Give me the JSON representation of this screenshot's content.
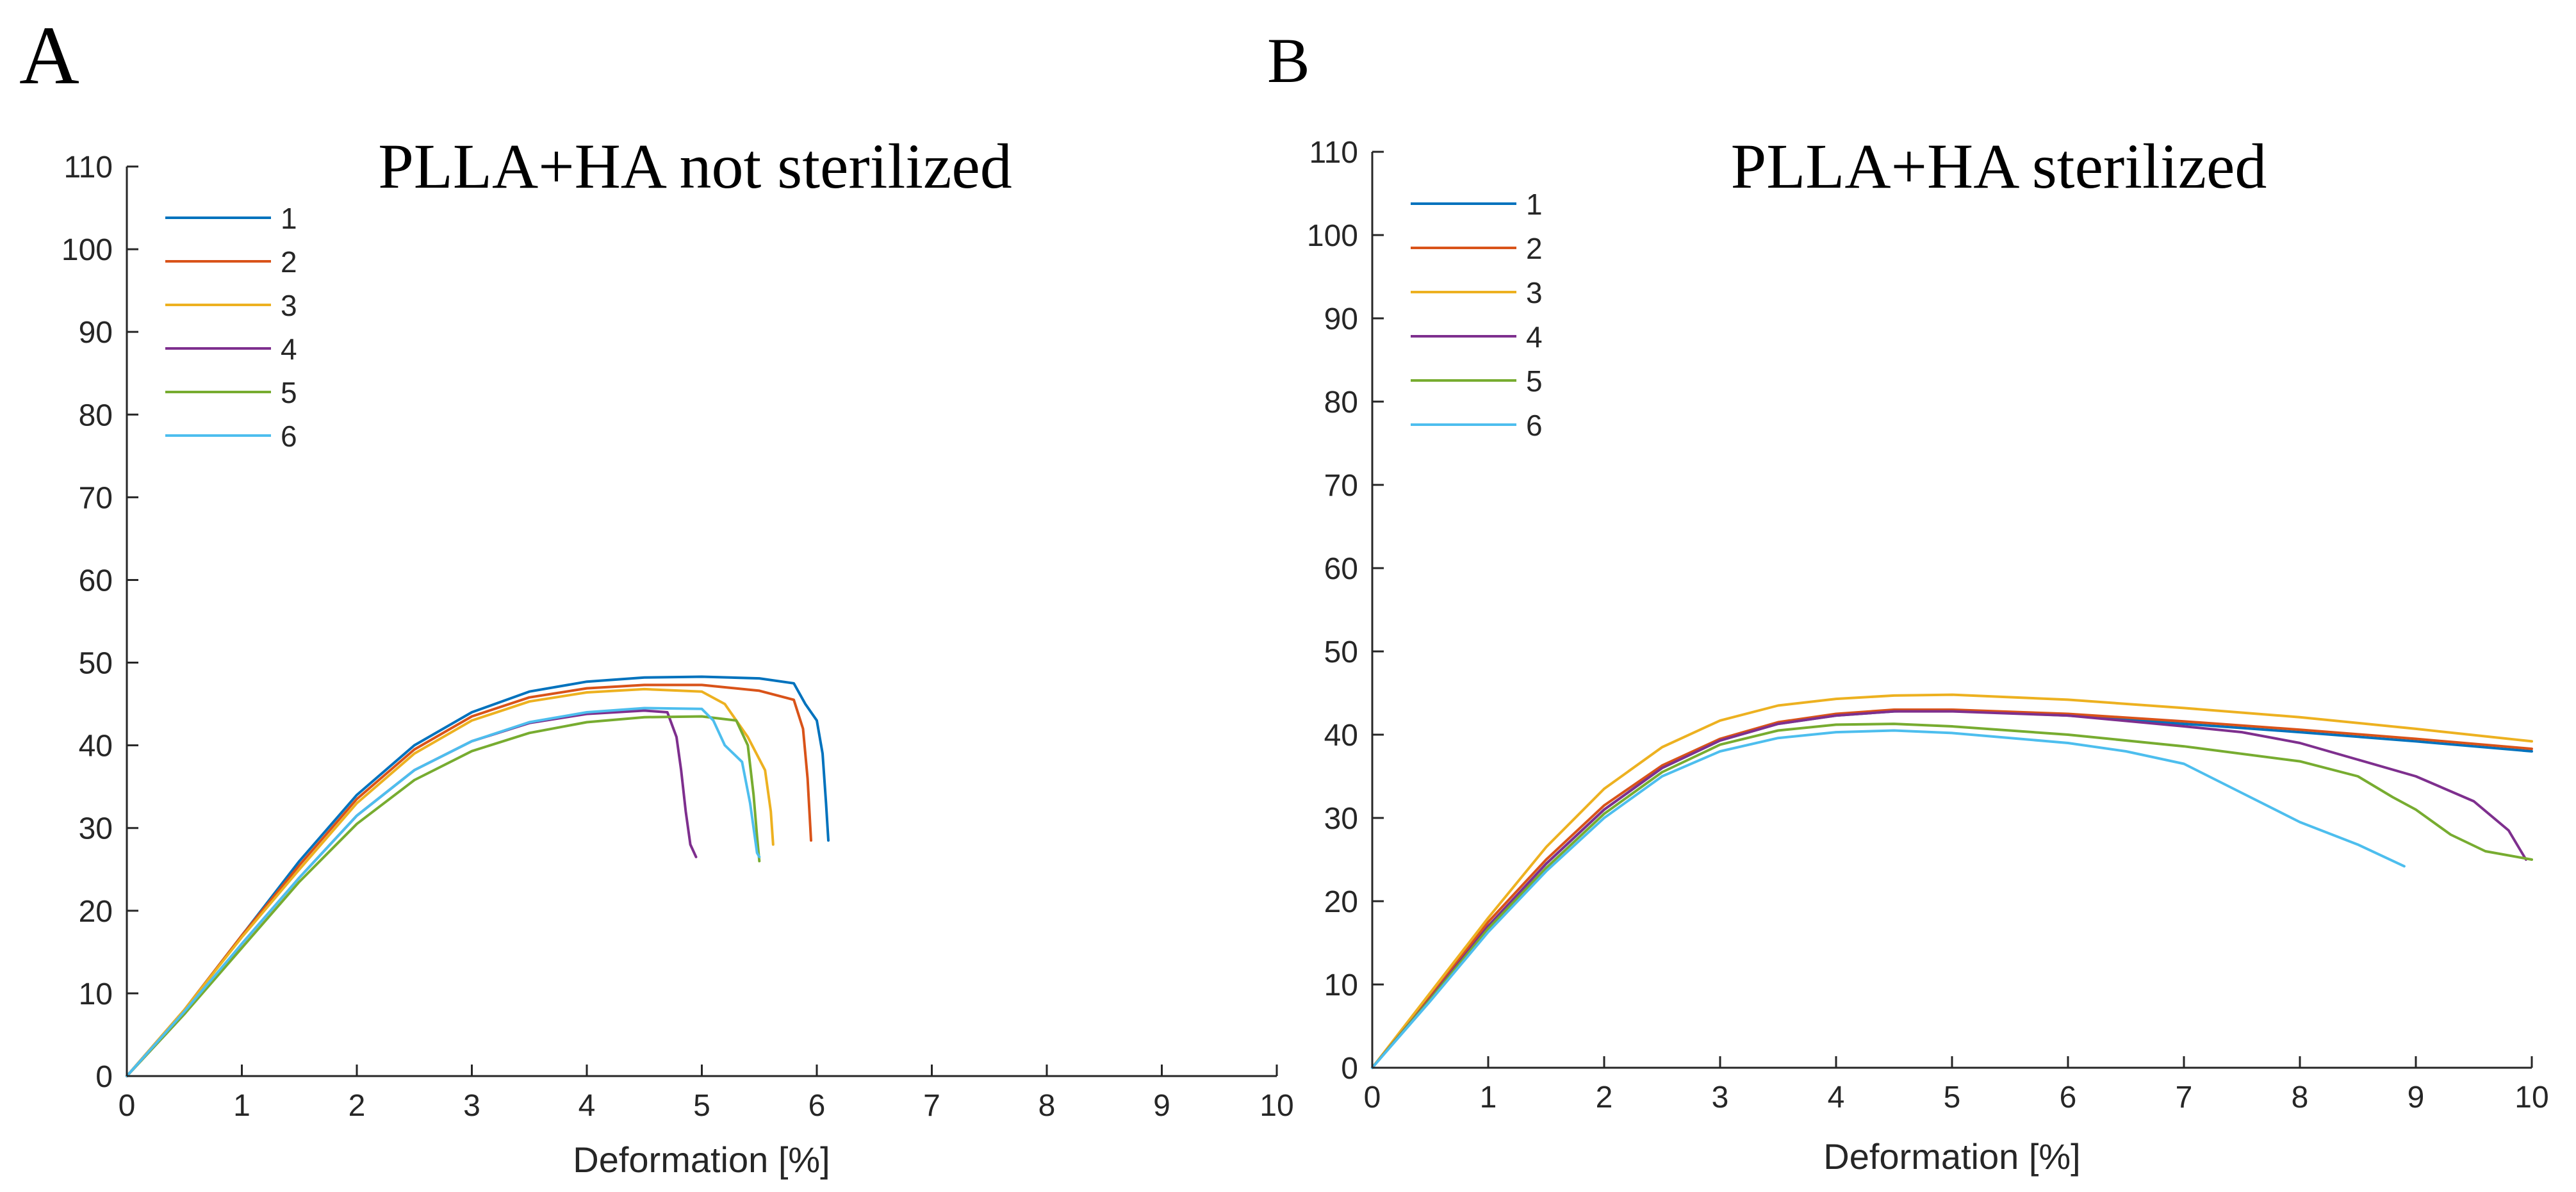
{
  "chart_data": [
    {
      "panel": "A",
      "type": "line",
      "title": "PLLA+HA not sterilized",
      "xlabel": "Deformation [%]",
      "ylabel": "",
      "xlim": [
        0,
        10
      ],
      "ylim": [
        0,
        110
      ],
      "xticks": [
        0,
        1,
        2,
        3,
        4,
        5,
        6,
        7,
        8,
        9,
        10
      ],
      "yticks": [
        0,
        10,
        20,
        30,
        40,
        50,
        60,
        70,
        80,
        90,
        100,
        110
      ],
      "legend_position": "top-left",
      "series": [
        {
          "name": "1",
          "color": "#0072BD",
          "points": [
            [
              0,
              0
            ],
            [
              0.5,
              8
            ],
            [
              1,
              17
            ],
            [
              1.5,
              26
            ],
            [
              2,
              34
            ],
            [
              2.5,
              40
            ],
            [
              3,
              44
            ],
            [
              3.5,
              46.5
            ],
            [
              4,
              47.7
            ],
            [
              4.5,
              48.2
            ],
            [
              5,
              48.3
            ],
            [
              5.5,
              48.1
            ],
            [
              5.8,
              47.5
            ],
            [
              5.9,
              45
            ],
            [
              6.0,
              43
            ],
            [
              6.05,
              39
            ],
            [
              6.08,
              33
            ],
            [
              6.1,
              28.5
            ]
          ]
        },
        {
          "name": "2",
          "color": "#D95319",
          "points": [
            [
              0,
              0
            ],
            [
              0.5,
              8
            ],
            [
              1,
              17
            ],
            [
              1.5,
              25.5
            ],
            [
              2,
              33.5
            ],
            [
              2.5,
              39.5
            ],
            [
              3,
              43.5
            ],
            [
              3.5,
              45.8
            ],
            [
              4,
              46.9
            ],
            [
              4.5,
              47.3
            ],
            [
              5,
              47.3
            ],
            [
              5.5,
              46.6
            ],
            [
              5.8,
              45.5
            ],
            [
              5.88,
              42
            ],
            [
              5.92,
              36
            ],
            [
              5.95,
              28.5
            ]
          ]
        },
        {
          "name": "3",
          "color": "#EDB120",
          "points": [
            [
              0,
              0
            ],
            [
              0.5,
              8
            ],
            [
              1,
              16.8
            ],
            [
              1.5,
              25
            ],
            [
              2,
              33
            ],
            [
              2.5,
              39
            ],
            [
              3,
              43
            ],
            [
              3.5,
              45.3
            ],
            [
              4,
              46.4
            ],
            [
              4.5,
              46.8
            ],
            [
              5,
              46.5
            ],
            [
              5.2,
              45
            ],
            [
              5.4,
              41
            ],
            [
              5.55,
              37
            ],
            [
              5.6,
              32
            ],
            [
              5.62,
              28
            ]
          ]
        },
        {
          "name": "4",
          "color": "#7E2F8E",
          "points": [
            [
              0,
              0
            ],
            [
              0.5,
              7.5
            ],
            [
              1,
              16
            ],
            [
              1.5,
              24
            ],
            [
              2,
              31.5
            ],
            [
              2.5,
              37
            ],
            [
              3,
              40.5
            ],
            [
              3.5,
              42.7
            ],
            [
              4,
              43.8
            ],
            [
              4.5,
              44.2
            ],
            [
              4.7,
              44
            ],
            [
              4.78,
              41
            ],
            [
              4.82,
              37
            ],
            [
              4.86,
              32
            ],
            [
              4.9,
              28
            ],
            [
              4.95,
              26.5
            ]
          ]
        },
        {
          "name": "5",
          "color": "#77AC30",
          "points": [
            [
              0,
              0
            ],
            [
              0.5,
              7.5
            ],
            [
              1,
              15.5
            ],
            [
              1.5,
              23.5
            ],
            [
              2,
              30.5
            ],
            [
              2.5,
              35.8
            ],
            [
              3,
              39.3
            ],
            [
              3.5,
              41.5
            ],
            [
              4,
              42.8
            ],
            [
              4.5,
              43.4
            ],
            [
              5,
              43.5
            ],
            [
              5.3,
              43
            ],
            [
              5.4,
              40
            ],
            [
              5.45,
              34
            ],
            [
              5.48,
              29
            ],
            [
              5.5,
              26
            ]
          ]
        },
        {
          "name": "6",
          "color": "#4DBEEE",
          "points": [
            [
              0,
              0
            ],
            [
              0.5,
              7.8
            ],
            [
              1,
              16
            ],
            [
              1.5,
              24
            ],
            [
              2,
              31.5
            ],
            [
              2.5,
              37
            ],
            [
              3,
              40.5
            ],
            [
              3.5,
              42.8
            ],
            [
              4,
              44
            ],
            [
              4.5,
              44.5
            ],
            [
              5,
              44.4
            ],
            [
              5.1,
              43
            ],
            [
              5.2,
              40
            ],
            [
              5.35,
              38
            ],
            [
              5.42,
              33
            ],
            [
              5.48,
              27
            ],
            [
              5.5,
              26.5
            ]
          ]
        }
      ]
    },
    {
      "panel": "B",
      "type": "line",
      "title": "PLLA+HA sterilized",
      "xlabel": "Deformation [%]",
      "ylabel": "",
      "xlim": [
        0,
        10
      ],
      "ylim": [
        0,
        110
      ],
      "xticks": [
        0,
        1,
        2,
        3,
        4,
        5,
        6,
        7,
        8,
        9,
        10
      ],
      "yticks": [
        0,
        10,
        20,
        30,
        40,
        50,
        60,
        70,
        80,
        90,
        100,
        110
      ],
      "legend_position": "top-left",
      "series": [
        {
          "name": "1",
          "color": "#0072BD",
          "points": [
            [
              0,
              0
            ],
            [
              0.5,
              8.5
            ],
            [
              1,
              17
            ],
            [
              1.5,
              24.5
            ],
            [
              2,
              31
            ],
            [
              2.5,
              36
            ],
            [
              3,
              39.3
            ],
            [
              3.5,
              41.3
            ],
            [
              4,
              42.3
            ],
            [
              4.5,
              42.8
            ],
            [
              5,
              42.9
            ],
            [
              6,
              42.3
            ],
            [
              7,
              41.3
            ],
            [
              8,
              40.3
            ],
            [
              9,
              39.2
            ],
            [
              10,
              38
            ]
          ]
        },
        {
          "name": "2",
          "color": "#D95319",
          "points": [
            [
              0,
              0
            ],
            [
              0.5,
              8.5
            ],
            [
              1,
              17.5
            ],
            [
              1.5,
              25
            ],
            [
              2,
              31.5
            ],
            [
              2.5,
              36.3
            ],
            [
              3,
              39.5
            ],
            [
              3.5,
              41.5
            ],
            [
              4,
              42.5
            ],
            [
              4.5,
              43
            ],
            [
              5,
              43
            ],
            [
              6,
              42.5
            ],
            [
              7,
              41.6
            ],
            [
              8,
              40.6
            ],
            [
              9,
              39.5
            ],
            [
              10,
              38.3
            ]
          ]
        },
        {
          "name": "3",
          "color": "#EDB120",
          "points": [
            [
              0,
              0
            ],
            [
              0.5,
              9
            ],
            [
              1,
              18
            ],
            [
              1.5,
              26.5
            ],
            [
              2,
              33.5
            ],
            [
              2.5,
              38.5
            ],
            [
              3,
              41.7
            ],
            [
              3.5,
              43.5
            ],
            [
              4,
              44.3
            ],
            [
              4.5,
              44.7
            ],
            [
              5,
              44.8
            ],
            [
              6,
              44.2
            ],
            [
              7,
              43.2
            ],
            [
              8,
              42.1
            ],
            [
              9,
              40.7
            ],
            [
              10,
              39.2
            ]
          ]
        },
        {
          "name": "4",
          "color": "#7E2F8E",
          "points": [
            [
              0,
              0
            ],
            [
              0.5,
              8.3
            ],
            [
              1,
              17
            ],
            [
              1.5,
              24.5
            ],
            [
              2,
              31
            ],
            [
              2.5,
              36
            ],
            [
              3,
              39.3
            ],
            [
              3.5,
              41.3
            ],
            [
              4,
              42.3
            ],
            [
              4.5,
              42.8
            ],
            [
              5,
              42.8
            ],
            [
              6,
              42.3
            ],
            [
              7,
              41
            ],
            [
              7.5,
              40.3
            ],
            [
              8,
              39
            ],
            [
              8.5,
              37
            ],
            [
              9,
              35
            ],
            [
              9.5,
              32
            ],
            [
              9.8,
              28.5
            ],
            [
              9.95,
              25
            ]
          ]
        },
        {
          "name": "5",
          "color": "#77AC30",
          "points": [
            [
              0,
              0
            ],
            [
              0.5,
              8.2
            ],
            [
              1,
              16.7
            ],
            [
              1.5,
              24
            ],
            [
              2,
              30.5
            ],
            [
              2.5,
              35.5
            ],
            [
              3,
              38.8
            ],
            [
              3.5,
              40.5
            ],
            [
              4,
              41.2
            ],
            [
              4.5,
              41.3
            ],
            [
              5,
              41
            ],
            [
              6,
              40
            ],
            [
              7,
              38.6
            ],
            [
              8,
              36.8
            ],
            [
              8.5,
              35
            ],
            [
              8.8,
              32.5
            ],
            [
              9,
              31
            ],
            [
              9.3,
              28
            ],
            [
              9.6,
              26
            ],
            [
              10,
              25
            ]
          ]
        },
        {
          "name": "6",
          "color": "#4DBEEE",
          "points": [
            [
              0,
              0
            ],
            [
              0.5,
              8
            ],
            [
              1,
              16.3
            ],
            [
              1.5,
              23.6
            ],
            [
              2,
              30
            ],
            [
              2.5,
              35
            ],
            [
              3,
              38
            ],
            [
              3.5,
              39.6
            ],
            [
              4,
              40.3
            ],
            [
              4.5,
              40.5
            ],
            [
              5,
              40.2
            ],
            [
              6,
              39
            ],
            [
              6.5,
              38
            ],
            [
              7,
              36.5
            ],
            [
              7.5,
              33
            ],
            [
              8,
              29.5
            ],
            [
              8.5,
              26.8
            ],
            [
              8.9,
              24.2
            ]
          ]
        }
      ]
    }
  ]
}
